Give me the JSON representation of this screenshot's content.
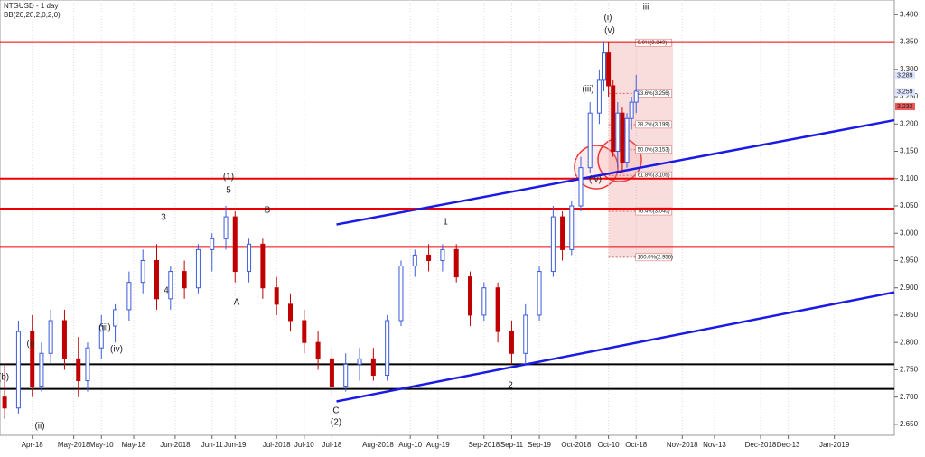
{
  "chart_data": {
    "type": "candlestick",
    "title": "NTGUSD - 1 day",
    "subtitle": "BB(20,20,2,0,2,0)",
    "xlim": [
      -7,
      187
    ],
    "xticks": [
      {
        "value": 0,
        "label": "Apr-18"
      },
      {
        "value": 9,
        "label": "May-2018"
      },
      {
        "value": 15,
        "label": "May-10"
      },
      {
        "value": 22,
        "label": "May-18"
      },
      {
        "value": 31,
        "label": "Jun-2018"
      },
      {
        "value": 39,
        "label": "Jun-11"
      },
      {
        "value": 44,
        "label": "Jun-19"
      },
      {
        "value": 53,
        "label": "Jul-2018"
      },
      {
        "value": 59,
        "label": "Jul-10"
      },
      {
        "value": 65,
        "label": "Jul-18"
      },
      {
        "value": 75,
        "label": "Aug-2018"
      },
      {
        "value": 82,
        "label": "Aug-10"
      },
      {
        "value": 88,
        "label": "Aug-19"
      },
      {
        "value": 98,
        "label": "Sep-2018"
      },
      {
        "value": 104,
        "label": "Sep-11"
      },
      {
        "value": 110,
        "label": "Sep-19"
      },
      {
        "value": 118,
        "label": "Oct-2018"
      },
      {
        "value": 125,
        "label": "Oct-10"
      },
      {
        "value": 131,
        "label": "Oct-18"
      },
      {
        "value": 141,
        "label": "Nov-2018"
      },
      {
        "value": 148,
        "label": "Nov-13"
      },
      {
        "value": 158,
        "label": "Dec-2018"
      },
      {
        "value": 164,
        "label": "Dec-13"
      },
      {
        "value": 174,
        "label": "Jan-2019"
      }
    ],
    "ylim": [
      2.63,
      3.427
    ],
    "yticks": [
      {
        "value": 3.4,
        "label": "3.400"
      },
      {
        "value": 3.35,
        "label": "3.350"
      },
      {
        "value": 3.3,
        "label": "3.300"
      },
      {
        "value": 3.25,
        "label": "3.250"
      },
      {
        "value": 3.2,
        "label": "3.200"
      },
      {
        "value": 3.15,
        "label": "3.150"
      },
      {
        "value": 3.1,
        "label": "3.100"
      },
      {
        "value": 3.05,
        "label": "3.050"
      },
      {
        "value": 3.0,
        "label": "3.000"
      },
      {
        "value": 2.95,
        "label": "2.950"
      },
      {
        "value": 2.9,
        "label": "2.900"
      },
      {
        "value": 2.85,
        "label": "2.850"
      },
      {
        "value": 2.8,
        "label": "2.800"
      },
      {
        "value": 2.75,
        "label": "2.750"
      },
      {
        "value": 2.7,
        "label": "2.700"
      },
      {
        "value": 2.65,
        "label": "2.650"
      }
    ],
    "up_color": "#3b5bdb",
    "down_color": "#c00000",
    "x": [
      -6,
      -3,
      0,
      2,
      4,
      7,
      10,
      12,
      15,
      18,
      21,
      24,
      27,
      30,
      33,
      36,
      39,
      42,
      44,
      47,
      50,
      53,
      56,
      59,
      62,
      65,
      68,
      71,
      74,
      77,
      80,
      83,
      86,
      89,
      92,
      95,
      98,
      101,
      104,
      107,
      110,
      113,
      115,
      117,
      119,
      121,
      123,
      124,
      125,
      126,
      127,
      128,
      129,
      130,
      131
    ],
    "open": [
      2.7,
      2.68,
      2.82,
      2.72,
      2.78,
      2.84,
      2.77,
      2.73,
      2.79,
      2.83,
      2.86,
      2.91,
      2.95,
      2.88,
      2.93,
      2.9,
      2.97,
      2.99,
      3.03,
      2.93,
      2.98,
      2.9,
      2.87,
      2.84,
      2.8,
      2.77,
      2.72,
      2.76,
      2.77,
      2.74,
      2.84,
      2.94,
      2.96,
      2.95,
      2.97,
      2.92,
      2.85,
      2.9,
      2.82,
      2.78,
      2.85,
      2.93,
      3.03,
      2.97,
      3.05,
      3.12,
      3.22,
      3.28,
      3.33,
      3.27,
      3.15,
      3.22,
      3.13,
      3.21,
      3.24
    ],
    "high": [
      2.76,
      2.84,
      2.85,
      2.8,
      2.86,
      2.86,
      2.81,
      2.8,
      2.85,
      2.87,
      2.93,
      2.97,
      2.98,
      2.94,
      2.95,
      2.98,
      3.0,
      3.05,
      3.04,
      2.99,
      2.99,
      2.92,
      2.89,
      2.86,
      2.82,
      2.79,
      2.78,
      2.79,
      2.79,
      2.85,
      2.95,
      2.97,
      2.98,
      2.98,
      2.98,
      2.93,
      2.91,
      2.91,
      2.84,
      2.87,
      2.94,
      3.05,
      3.04,
      3.06,
      3.14,
      3.24,
      3.3,
      3.35,
      3.35,
      3.28,
      3.24,
      3.23,
      3.22,
      3.25,
      3.29
    ],
    "low": [
      2.66,
      2.67,
      2.7,
      2.71,
      2.76,
      2.75,
      2.7,
      2.71,
      2.77,
      2.8,
      2.84,
      2.89,
      2.86,
      2.86,
      2.88,
      2.89,
      2.93,
      2.97,
      2.91,
      2.91,
      2.88,
      2.85,
      2.82,
      2.78,
      2.75,
      2.7,
      2.71,
      2.73,
      2.73,
      2.73,
      2.83,
      2.92,
      2.93,
      2.93,
      2.91,
      2.83,
      2.84,
      2.8,
      2.76,
      2.76,
      2.84,
      2.92,
      2.95,
      2.96,
      3.04,
      3.11,
      3.2,
      3.26,
      3.25,
      3.14,
      3.12,
      3.11,
      3.12,
      3.19,
      3.22
    ],
    "close": [
      2.68,
      2.82,
      2.72,
      2.78,
      2.84,
      2.77,
      2.73,
      2.79,
      2.83,
      2.86,
      2.91,
      2.95,
      2.88,
      2.93,
      2.9,
      2.97,
      2.99,
      3.03,
      2.93,
      2.98,
      2.9,
      2.87,
      2.84,
      2.8,
      2.77,
      2.72,
      2.76,
      2.77,
      2.74,
      2.84,
      2.94,
      2.96,
      2.95,
      2.97,
      2.92,
      2.85,
      2.9,
      2.82,
      2.78,
      2.85,
      2.93,
      3.03,
      2.97,
      3.05,
      3.12,
      3.22,
      3.28,
      3.33,
      3.27,
      3.15,
      3.22,
      3.13,
      3.21,
      3.24,
      3.26
    ],
    "levels_red": [
      3.35,
      3.1,
      3.045,
      2.975
    ],
    "levels_black": [
      2.76,
      2.715
    ],
    "trendlines": [
      {
        "x": [
          66,
          187
        ],
        "y": [
          3.016,
          3.207
        ]
      },
      {
        "x": [
          66,
          187
        ],
        "y": [
          2.692,
          2.892
        ]
      }
    ],
    "fib": {
      "x": [
        125,
        139
      ],
      "levels": [
        {
          "value": 3.349,
          "label": "0.0%(3.349)"
        },
        {
          "value": 3.256,
          "label": "23.6%(3.256)"
        },
        {
          "value": 3.199,
          "label": "38.2%(3.199)"
        },
        {
          "value": 3.153,
          "label": "50.0%(3.153)"
        },
        {
          "value": 3.106,
          "label": "61.8%(3.106)"
        },
        {
          "value": 3.04,
          "label": "76.4%(3.040)"
        },
        {
          "value": 2.956,
          "label": "100.0%(2.956)"
        }
      ]
    },
    "price_markers": [
      {
        "value": 3.289,
        "label": "3.289"
      },
      {
        "value": 3.259,
        "label": "3.259"
      },
      {
        "value": 3.232,
        "label": "3.232"
      }
    ],
    "wave_labels": [
      "(b)",
      "(i)",
      "(ii)",
      "(iii)",
      "(iv)",
      "3",
      "4",
      "(1)",
      "5",
      "A",
      "B",
      "(2)",
      "C",
      "1",
      "2",
      "(iii)",
      "(iv)",
      "(v)",
      "(i)",
      "iii"
    ]
  }
}
